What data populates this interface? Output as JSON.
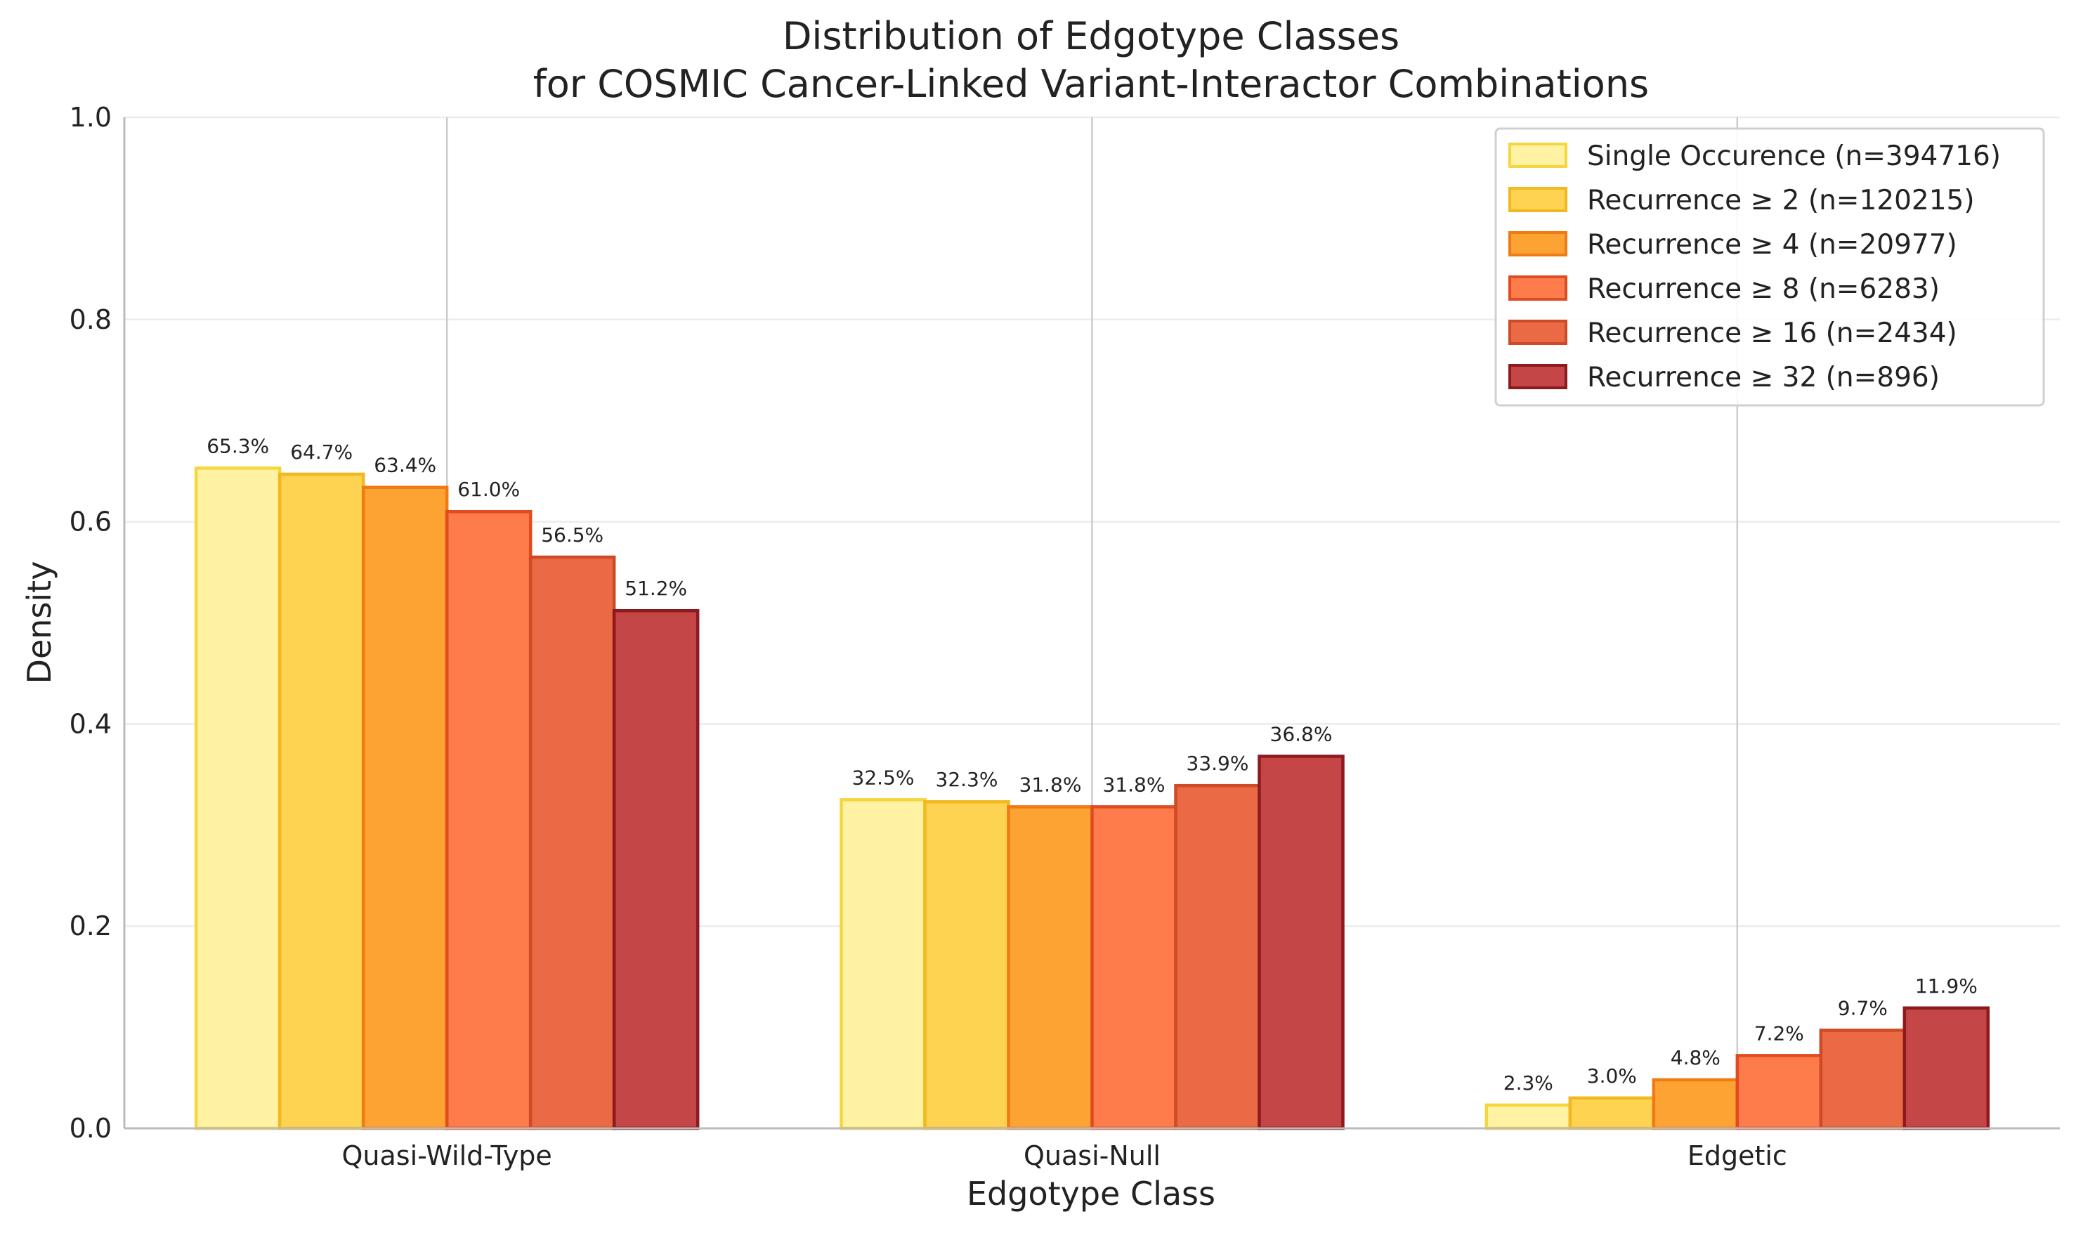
{
  "chart_data": {
    "type": "bar",
    "title_lines": [
      "Distribution of Edgotype Classes",
      "for COSMIC Cancer-Linked Variant-Interactor Combinations"
    ],
    "xlabel": "Edgotype Class",
    "ylabel": "Density",
    "ylim": [
      0,
      1.0
    ],
    "yticks": [
      "0.0",
      "0.2",
      "0.4",
      "0.6",
      "0.8",
      "1.0"
    ],
    "ytick_values": [
      0,
      0.2,
      0.4,
      0.6,
      0.8,
      1.0
    ],
    "grid": true,
    "legend_position": "top-right",
    "categories": [
      "Quasi-Wild-Type",
      "Quasi-Null",
      "Edgetic"
    ],
    "series": [
      {
        "name": "Single Occurence (n=394716)",
        "values": [
          0.653,
          0.325,
          0.023
        ],
        "labels": [
          "65.3%",
          "32.5%",
          "2.3%"
        ],
        "fill": "#FFF3A3",
        "stroke": "#F5D63D"
      },
      {
        "name": "Recurrence ≥ 2 (n=120215)",
        "values": [
          0.647,
          0.323,
          0.03
        ],
        "labels": [
          "64.7%",
          "32.3%",
          "3.0%"
        ],
        "fill": "#FED351",
        "stroke": "#F1B81F"
      },
      {
        "name": "Recurrence ≥ 4 (n=20977)",
        "values": [
          0.634,
          0.318,
          0.048
        ],
        "labels": [
          "63.4%",
          "31.8%",
          "4.8%"
        ],
        "fill": "#FCA334",
        "stroke": "#F07A14"
      },
      {
        "name": "Recurrence ≥ 8 (n=6283)",
        "values": [
          0.61,
          0.318,
          0.072
        ],
        "labels": [
          "61.0%",
          "31.8%",
          "7.2%"
        ],
        "fill": "#FE7B4C",
        "stroke": "#E04B20"
      },
      {
        "name": "Recurrence ≥ 16 (n=2434)",
        "values": [
          0.565,
          0.339,
          0.097
        ],
        "labels": [
          "56.5%",
          "33.9%",
          "9.7%"
        ],
        "fill": "#E96A45",
        "stroke": "#CF4A25"
      },
      {
        "name": "Recurrence ≥ 32 (n=896)",
        "values": [
          0.512,
          0.368,
          0.119
        ],
        "labels": [
          "51.2%",
          "36.8%",
          "11.9%"
        ],
        "fill": "#C44646",
        "stroke": "#8C1A1F"
      }
    ]
  }
}
